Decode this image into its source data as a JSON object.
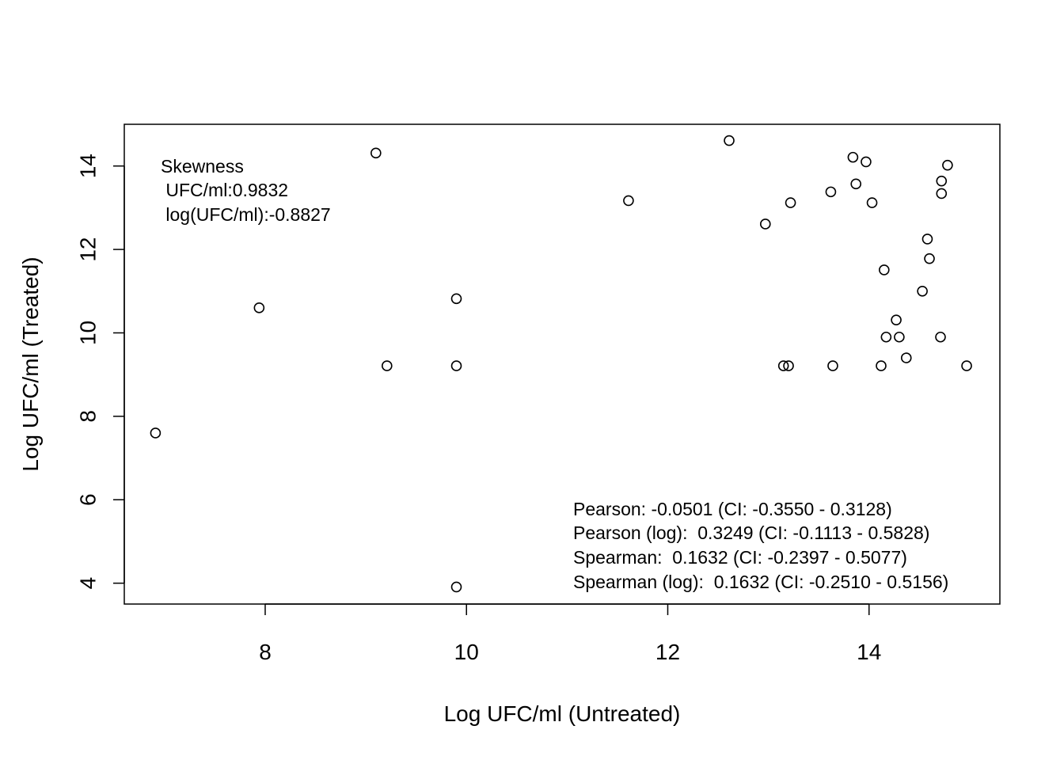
{
  "chart_data": {
    "type": "scatter",
    "title": "",
    "xlabel": "Log UFC/ml (Untreated)",
    "ylabel": "Log UFC/ml (Treated)",
    "xlim": [
      6.6,
      15.3
    ],
    "ylim": [
      3.5,
      15.0
    ],
    "x_ticks": [
      8,
      10,
      12,
      14
    ],
    "y_ticks": [
      4,
      6,
      8,
      10,
      12,
      14
    ],
    "x_tick_labels": [
      "8",
      "10",
      "12",
      "14"
    ],
    "y_tick_labels": [
      "4",
      "6",
      "8",
      "10",
      "12",
      "14"
    ],
    "grid": false,
    "marker": "open-circle",
    "points": [
      {
        "x": 6.91,
        "y": 7.6
      },
      {
        "x": 7.94,
        "y": 10.6
      },
      {
        "x": 9.1,
        "y": 14.31
      },
      {
        "x": 9.21,
        "y": 9.21
      },
      {
        "x": 9.9,
        "y": 10.82
      },
      {
        "x": 9.9,
        "y": 9.21
      },
      {
        "x": 9.9,
        "y": 3.91
      },
      {
        "x": 11.61,
        "y": 13.17
      },
      {
        "x": 12.61,
        "y": 14.61
      },
      {
        "x": 12.97,
        "y": 12.61
      },
      {
        "x": 13.15,
        "y": 9.21
      },
      {
        "x": 13.2,
        "y": 9.21
      },
      {
        "x": 13.22,
        "y": 13.12
      },
      {
        "x": 13.62,
        "y": 13.38
      },
      {
        "x": 13.64,
        "y": 9.21
      },
      {
        "x": 13.84,
        "y": 14.21
      },
      {
        "x": 13.87,
        "y": 13.57
      },
      {
        "x": 13.97,
        "y": 14.1
      },
      {
        "x": 14.03,
        "y": 13.12
      },
      {
        "x": 14.12,
        "y": 9.21
      },
      {
        "x": 14.15,
        "y": 11.51
      },
      {
        "x": 14.17,
        "y": 9.9
      },
      {
        "x": 14.27,
        "y": 10.31
      },
      {
        "x": 14.3,
        "y": 9.9
      },
      {
        "x": 14.37,
        "y": 9.4
      },
      {
        "x": 14.53,
        "y": 11.0
      },
      {
        "x": 14.58,
        "y": 12.25
      },
      {
        "x": 14.6,
        "y": 11.78
      },
      {
        "x": 14.71,
        "y": 9.9
      },
      {
        "x": 14.72,
        "y": 13.64
      },
      {
        "x": 14.72,
        "y": 13.34
      },
      {
        "x": 14.78,
        "y": 14.02
      },
      {
        "x": 14.97,
        "y": 9.21
      }
    ],
    "annotations": {
      "skewness": [
        "Skewness",
        " UFC/ml:0.9832",
        " log(UFC/ml):-0.8827"
      ],
      "correlations": [
        "Pearson: -0.0501 (CI: -0.3550 - 0.3128)",
        "Pearson (log):  0.3249 (CI: -0.1113 - 0.5828)",
        "Spearman:  0.1632 (CI: -0.2397 - 0.5077)",
        "Spearman (log):  0.1632 (CI: -0.2510 - 0.5156)"
      ]
    }
  }
}
